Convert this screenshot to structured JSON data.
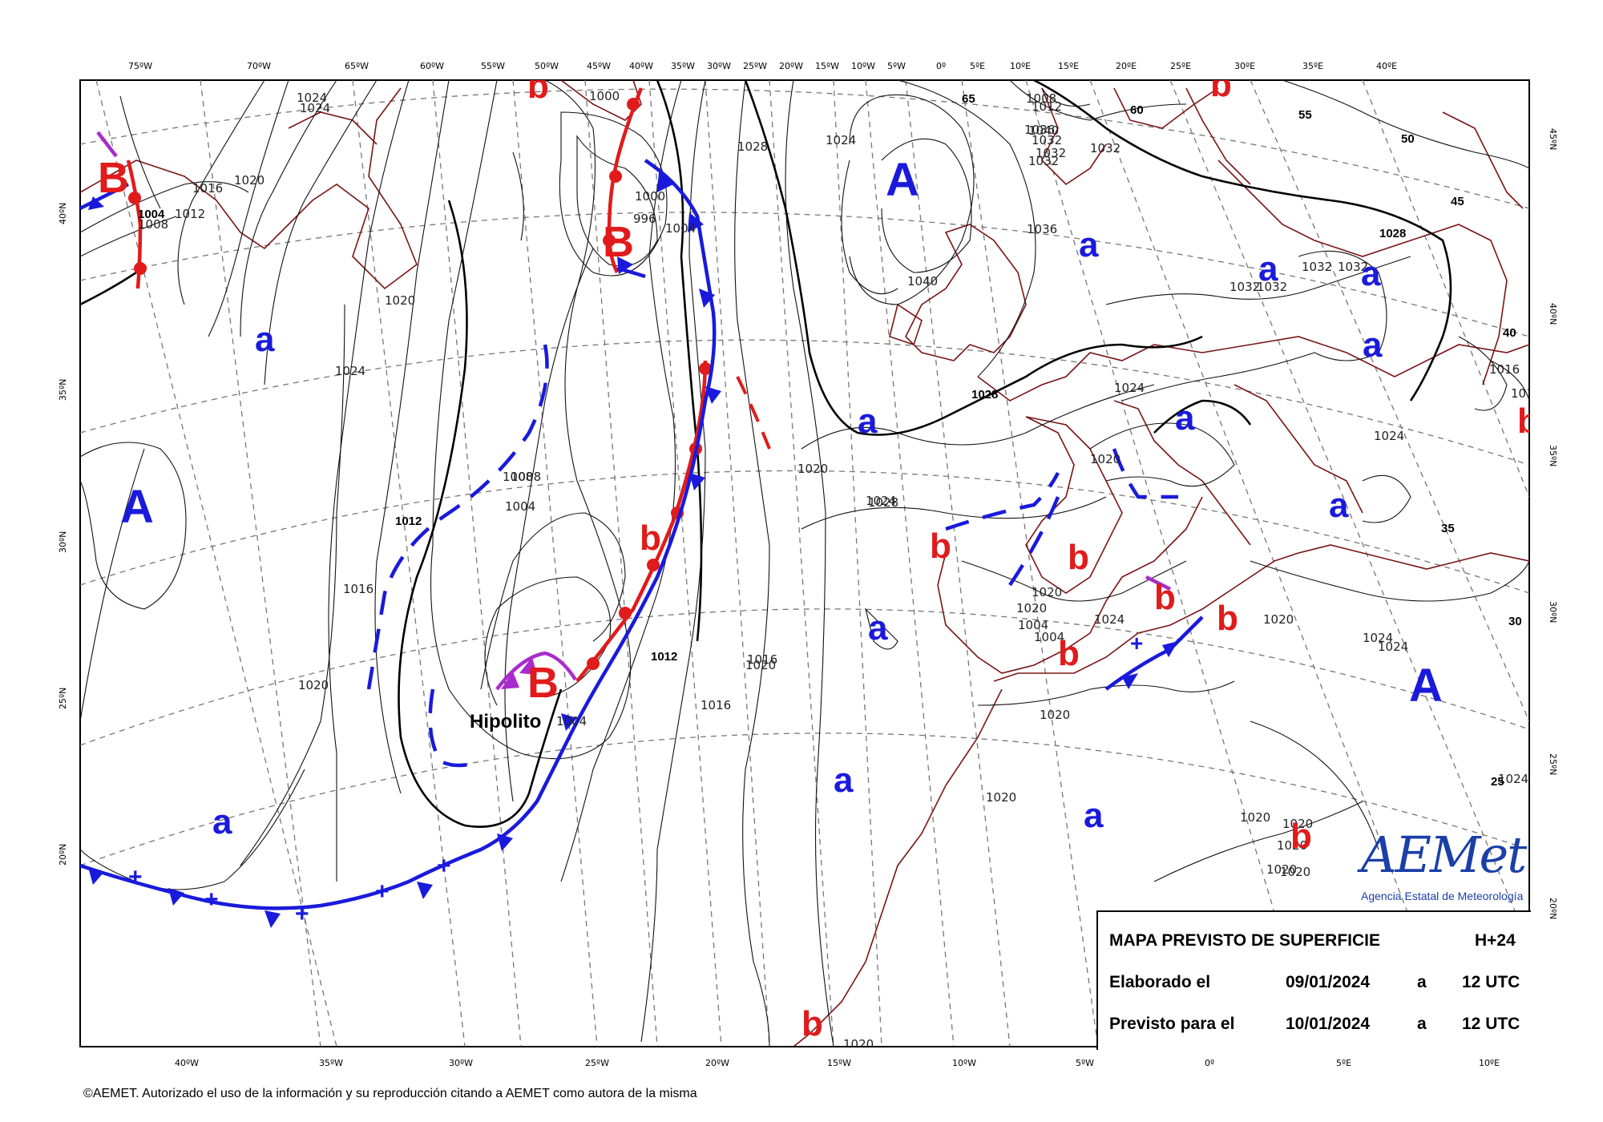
{
  "map": {
    "top_lon_labels": [
      "75ºW",
      "70ºW",
      "65ºW",
      "60ºW",
      "55ºW",
      "50ºW",
      "45ºW",
      "40ºW",
      "35ºW",
      "30ºW",
      "25ºW",
      "20ºW",
      "15ºW",
      "10ºW",
      "5ºW",
      "0º",
      "5ºE",
      "10ºE",
      "15ºE",
      "20ºE",
      "25ºE",
      "30ºE",
      "35ºE",
      "40ºE"
    ],
    "bottom_lon_labels": [
      "40ºW",
      "35ºW",
      "30ºW",
      "25ºW",
      "20ºW",
      "15ºW",
      "10ºW",
      "5ºW",
      "0º",
      "5ºE",
      "10ºE"
    ],
    "left_lat_labels": [
      "40ºN",
      "35ºN",
      "30ºN",
      "25ºN",
      "20ºN"
    ],
    "right_lat_labels": [
      "45ºN",
      "40ºN",
      "35ºN",
      "30ºN",
      "25ºN",
      "20ºN"
    ],
    "isobar_labels": [
      "1024",
      "1024",
      "1020",
      "1016",
      "1012",
      "1008",
      "1004",
      "1020",
      "1024",
      "1028",
      "1016",
      "1020",
      "1012",
      "1008",
      "1004",
      "1000",
      "996",
      "1000",
      "1004",
      "1008",
      "1012",
      "1016",
      "1020",
      "1024",
      "1004",
      "1004",
      "1008",
      "1004",
      "1012",
      "1016",
      "1020",
      "1020",
      "1024",
      "1036",
      "1040",
      "1040",
      "1036",
      "1032",
      "1032",
      "1032",
      "1032",
      "1028",
      "1028",
      "1024",
      "1020",
      "1024",
      "1020",
      "1020",
      "1020",
      "1020",
      "1020",
      "1016",
      "1032",
      "1032",
      "1032",
      "1032",
      "1028",
      "1024",
      "1024",
      "1024",
      "1020",
      "1016",
      "1012",
      "1020",
      "1020",
      "1020",
      "1020",
      "1024"
    ],
    "outer_numbers": [
      "65",
      "60",
      "55",
      "50",
      "45",
      "40",
      "35",
      "30",
      "25"
    ],
    "centers_A": [
      "A",
      "A",
      "A"
    ],
    "centers_a": [
      "a",
      "a",
      "a",
      "a",
      "a",
      "a",
      "a",
      "a",
      "a",
      "a",
      "a",
      "a"
    ],
    "centers_B": [
      "B",
      "B",
      "B"
    ],
    "centers_b": [
      "b",
      "b",
      "b",
      "b",
      "b",
      "b",
      "b",
      "b",
      "b",
      "b",
      "b"
    ],
    "storm_name": "Hipolito"
  },
  "legend": {
    "title": "MAPA PREVISTO DE SUPERFICIE",
    "lead": "H+24",
    "row1_label": "Elaborado el",
    "row1_date": "09/01/2024",
    "row1_a": "a",
    "row1_time": "12 UTC",
    "row2_label": "Previsto para el",
    "row2_date": "10/01/2024",
    "row2_a": "a",
    "row2_time": "12 UTC"
  },
  "logo": {
    "word": "AEMet",
    "subtitle": "Agencia Estatal de Meteorología"
  },
  "footer": {
    "copyright": "©AEMET. Autorizado el uso de la información y su reproducción citando a AEMET como autora de la misma"
  },
  "colors": {
    "high": "#1a1adc",
    "low": "#e11b1b",
    "occlusion": "#a82ccc",
    "coast": "#7a1414"
  }
}
